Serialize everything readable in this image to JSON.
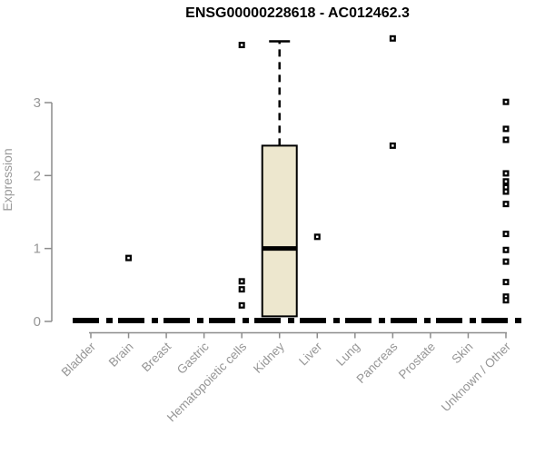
{
  "page": {
    "background": "#ffffff"
  },
  "chart_data": {
    "type": "boxplot",
    "title": "ENSG00000228618 - AC012462.3",
    "ylabel": "Expression",
    "xlabel": "",
    "ylim": [
      0,
      3.95
    ],
    "yticks": [
      0,
      1,
      2,
      3
    ],
    "grid": false,
    "legend": false,
    "categories": [
      "Bladder",
      "Brain",
      "Breast",
      "Gastric",
      "Hematopoietic cells",
      "Kidney",
      "Liver",
      "Lung",
      "Pancreas",
      "Prostate",
      "Skin",
      "Unknown / Other"
    ],
    "zero_line": {
      "value": 0,
      "note": "thick dashed black line across plot at expression 0"
    },
    "boxes": [
      {
        "category": "Bladder",
        "q1": 0,
        "median": 0,
        "q3": 0,
        "whisker_low": 0,
        "whisker_high": 0,
        "outliers": []
      },
      {
        "category": "Brain",
        "q1": 0,
        "median": 0,
        "q3": 0,
        "whisker_low": 0,
        "whisker_high": 0,
        "outliers": [
          0.87
        ]
      },
      {
        "category": "Breast",
        "q1": 0,
        "median": 0,
        "q3": 0,
        "whisker_low": 0,
        "whisker_high": 0,
        "outliers": []
      },
      {
        "category": "Gastric",
        "q1": 0,
        "median": 0,
        "q3": 0,
        "whisker_low": 0,
        "whisker_high": 0,
        "outliers": []
      },
      {
        "category": "Hematopoietic cells",
        "q1": 0,
        "median": 0,
        "q3": 0,
        "whisker_low": 0,
        "whisker_high": 0,
        "outliers": [
          3.79,
          0.55,
          0.44,
          0.22
        ]
      },
      {
        "category": "Kidney",
        "q1": 0.07,
        "median": 1.0,
        "q3": 2.41,
        "whisker_low": 0.07,
        "whisker_high": 3.84,
        "outliers": []
      },
      {
        "category": "Liver",
        "q1": 0,
        "median": 0,
        "q3": 0,
        "whisker_low": 0,
        "whisker_high": 0,
        "outliers": [
          1.16
        ]
      },
      {
        "category": "Lung",
        "q1": 0,
        "median": 0,
        "q3": 0,
        "whisker_low": 0,
        "whisker_high": 0,
        "outliers": []
      },
      {
        "category": "Pancreas",
        "q1": 0,
        "median": 0,
        "q3": 0,
        "whisker_low": 0,
        "whisker_high": 0,
        "outliers": [
          3.88,
          2.41
        ]
      },
      {
        "category": "Prostate",
        "q1": 0,
        "median": 0,
        "q3": 0,
        "whisker_low": 0,
        "whisker_high": 0,
        "outliers": []
      },
      {
        "category": "Skin",
        "q1": 0,
        "median": 0,
        "q3": 0,
        "whisker_low": 0,
        "whisker_high": 0,
        "outliers": []
      },
      {
        "category": "Unknown / Other",
        "q1": 0,
        "median": 0,
        "q3": 0,
        "whisker_low": 0,
        "whisker_high": 0,
        "outliers": [
          3.01,
          2.64,
          2.49,
          2.03,
          1.92,
          1.84,
          1.78,
          1.61,
          1.2,
          0.98,
          0.82,
          0.54,
          0.34,
          0.29
        ]
      }
    ],
    "colors": {
      "box_fill": "#EDE7CE",
      "box_border": "#000000",
      "median": "#000000",
      "outlier": "#000000",
      "zero_line": "#000000",
      "axis": "#8C8C8C",
      "tick_label": "#969696",
      "axis_label": "#9A9A9A",
      "title": "#000000"
    }
  }
}
